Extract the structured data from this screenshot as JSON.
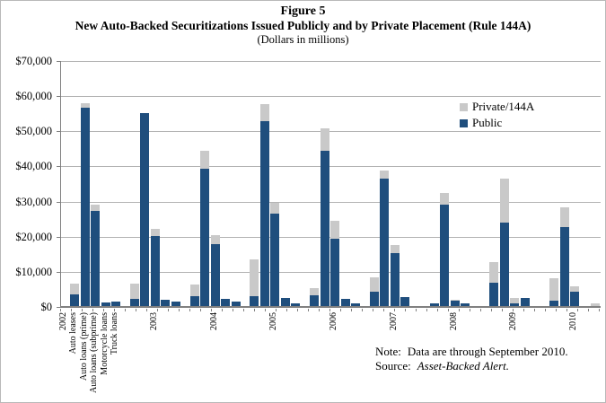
{
  "figure": {
    "title": "Figure 5",
    "subtitle": "New Auto-Backed Securitizations Issued Publicly and by Private Placement (Rule 144A)",
    "units_line": "(Dollars in millions)"
  },
  "legend": {
    "items": [
      {
        "label": "Private/144A",
        "color": "#c9c9c9"
      },
      {
        "label": "Public",
        "color": "#1f4e7d"
      }
    ]
  },
  "notes": {
    "note_label": "Note:",
    "note_text": "Data are through September 2010.",
    "source_label": "Source:",
    "source_text": "Asset-Backed Alert."
  },
  "chart_data": {
    "type": "bar",
    "stacked": true,
    "title": "New Auto-Backed Securitizations Issued Publicly and by Private Placement (Rule 144A)",
    "units": "Dollars in millions",
    "ylim": [
      0,
      70000
    ],
    "y_ticks": [
      "$70,000",
      "$60,000",
      "$50,000",
      "$40,000",
      "$30,000",
      "$20,000",
      "$10,000",
      "$0"
    ],
    "grid": true,
    "legend_position": "upper-right-inside",
    "categories": [
      "Auto leases",
      "Auto loans (prime)",
      "Auto loans (subprime)",
      "Motorcycle loans",
      "Truck loans"
    ],
    "series_names": [
      "Public",
      "Private/144A"
    ],
    "colors": {
      "public": "#1f4e7d",
      "private": "#c9c9c9"
    },
    "groups": [
      {
        "year": "2002",
        "public": [
          3300,
          56400,
          27100,
          1100,
          1400
        ],
        "private": [
          3200,
          1400,
          1900,
          0,
          0
        ]
      },
      {
        "year": "2003",
        "public": [
          2100,
          55000,
          19900,
          1800,
          1200
        ],
        "private": [
          4400,
          0,
          2100,
          0,
          0
        ]
      },
      {
        "year": "2004",
        "public": [
          2900,
          39200,
          17700,
          2000,
          1400
        ],
        "private": [
          3200,
          5100,
          2500,
          0,
          0
        ]
      },
      {
        "year": "2005",
        "public": [
          2700,
          52700,
          26300,
          2200,
          700
        ],
        "private": [
          10700,
          4800,
          3200,
          0,
          0
        ]
      },
      {
        "year": "2006",
        "public": [
          3100,
          44100,
          19100,
          2000,
          700
        ],
        "private": [
          2100,
          6500,
          5100,
          0,
          0
        ]
      },
      {
        "year": "2007",
        "public": [
          4000,
          36300,
          15200,
          2600,
          0
        ],
        "private": [
          4200,
          2300,
          2200,
          0,
          0
        ]
      },
      {
        "year": "2008",
        "public": [
          700,
          28800,
          1500,
          700,
          0
        ],
        "private": [
          0,
          3500,
          400,
          0,
          0
        ]
      },
      {
        "year": "2009",
        "public": [
          6700,
          23700,
          700,
          2400,
          0
        ],
        "private": [
          5900,
          12700,
          1500,
          0,
          0
        ]
      },
      {
        "year": "2010",
        "public": [
          1600,
          22500,
          4000,
          0,
          0
        ],
        "private": [
          6300,
          5700,
          1600,
          0,
          900
        ]
      }
    ]
  }
}
